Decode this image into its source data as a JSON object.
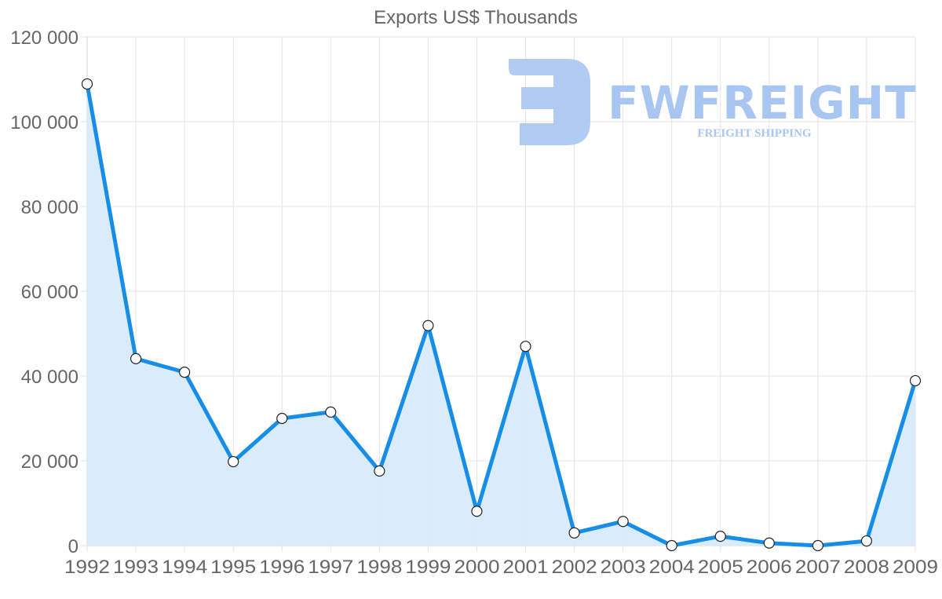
{
  "chart_data": {
    "type": "area",
    "title": "Exports US$ Thousands",
    "xlabel": "",
    "ylabel": "",
    "categories": [
      "1992",
      "1993",
      "1994",
      "1995",
      "1996",
      "1997",
      "1998",
      "1999",
      "2000",
      "2001",
      "2002",
      "2003",
      "2004",
      "2005",
      "2006",
      "2007",
      "2008",
      "2009"
    ],
    "series": [
      {
        "name": "Exports US$ Thousands",
        "values": [
          108900,
          44100,
          40900,
          19800,
          30000,
          31500,
          17600,
          51900,
          8100,
          47000,
          3000,
          5700,
          0,
          2200,
          600,
          0,
          1100,
          38900
        ],
        "line_color": "#168ee8",
        "fill_color": "#d8ebfb"
      }
    ],
    "ylim": [
      0,
      120000
    ],
    "yticks": [
      0,
      20000,
      40000,
      60000,
      80000,
      100000,
      120000
    ],
    "ytick_labels": [
      "0",
      "20 000",
      "40 000",
      "60 000",
      "80 000",
      "100 000",
      "120 000"
    ],
    "grid": true,
    "legend": "none"
  },
  "watermark": {
    "brand": "FWFREIGHT",
    "tagline": "FREIGHT SHIPPING",
    "color": "#a9c6f2"
  }
}
